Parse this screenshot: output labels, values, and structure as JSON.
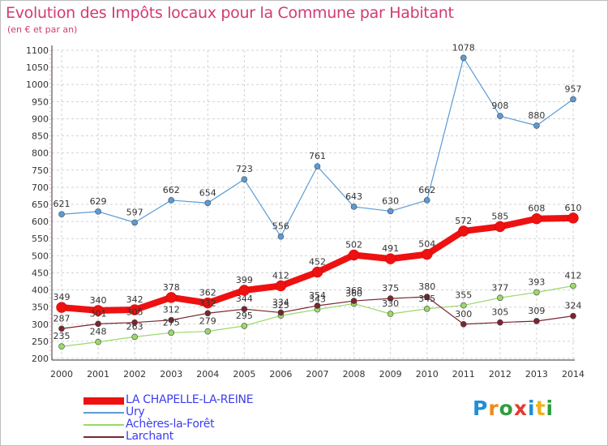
{
  "chart_data": {
    "type": "line",
    "title": "Evolution des Impôts locaux pour la Commune par Habitant",
    "subtitle": "(en € et par an)",
    "xlabel": "",
    "ylabel": "",
    "ylim": [
      200,
      1100
    ],
    "ytick_step": 50,
    "categories": [
      "2000",
      "2001",
      "2002",
      "2003",
      "2004",
      "2005",
      "2006",
      "2007",
      "2008",
      "2009",
      "2010",
      "2011",
      "2012",
      "2013",
      "2014"
    ],
    "series": [
      {
        "name": "LA CHAPELLE-LA-REINE",
        "color": "#ee1111",
        "values": [
          349,
          340,
          342,
          378,
          362,
          399,
          412,
          452,
          502,
          491,
          504,
          572,
          585,
          608,
          610
        ]
      },
      {
        "name": "Ury",
        "color": "#5b9bd5",
        "values": [
          621,
          629,
          597,
          662,
          654,
          723,
          556,
          761,
          643,
          630,
          662,
          1078,
          908,
          880,
          957
        ]
      },
      {
        "name": "Achères-la-Forêt",
        "color": "#9bd86a",
        "values": [
          235,
          248,
          263,
          275,
          279,
          295,
          325,
          343,
          360,
          330,
          345,
          355,
          377,
          393,
          412
        ]
      },
      {
        "name": "Larchant",
        "color": "#7a2530",
        "values": [
          287,
          301,
          305,
          312,
          332,
          344,
          334,
          354,
          368,
          375,
          380,
          300,
          305,
          309,
          324
        ]
      }
    ]
  },
  "brand": {
    "letters": [
      "P",
      "r",
      "o",
      "x",
      "i",
      "t",
      "i"
    ],
    "colors": [
      "#1f8fd6",
      "#f08a1a",
      "#2e9e3e",
      "#e53a30",
      "#1f8fd6",
      "#f0b21a",
      "#2e9e3e"
    ]
  }
}
